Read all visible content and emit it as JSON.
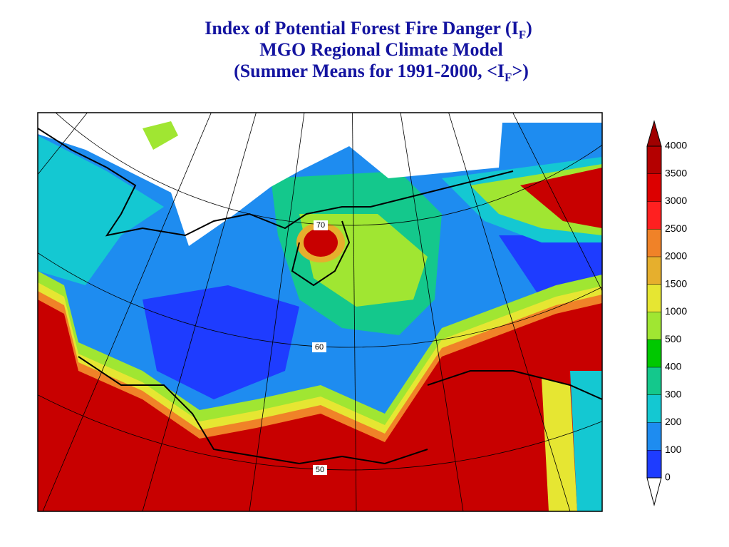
{
  "title": {
    "line1": [
      "Index of Potential Forest Fire Danger (I",
      "F",
      ")"
    ],
    "line2": "MGO Regional Climate Model",
    "line3": [
      "(Summer Means for 1991-2000, <I",
      "F",
      ">)"
    ]
  },
  "map": {
    "parallel_labels": [
      "70",
      "60",
      "50"
    ]
  },
  "colorbar": {
    "levels": [
      0,
      100,
      200,
      300,
      400,
      500,
      1000,
      1500,
      2000,
      2500,
      3000,
      3500,
      4000
    ],
    "colors": [
      "#ffffff",
      "#1e3cff",
      "#1e8cf0",
      "#14c8d2",
      "#14c88c",
      "#00c800",
      "#a0e632",
      "#e6e632",
      "#e6af2d",
      "#f08228",
      "#ff2020",
      "#dc0000",
      "#b40000",
      "#a00000"
    ]
  }
}
